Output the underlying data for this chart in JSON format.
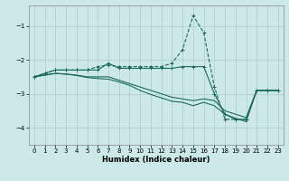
{
  "xlabel": "Humidex (Indice chaleur)",
  "ylabel": "",
  "background_color": "#cce8e8",
  "grid_color": "#aacccc",
  "line_color": "#1a6b5a",
  "xlim": [
    -0.5,
    23.5
  ],
  "ylim": [
    -4.5,
    -0.4
  ],
  "yticks": [
    -4,
    -3,
    -2,
    -1
  ],
  "xticks": [
    0,
    1,
    2,
    3,
    4,
    5,
    6,
    7,
    8,
    9,
    10,
    11,
    12,
    13,
    14,
    15,
    16,
    17,
    18,
    19,
    20,
    21,
    22,
    23
  ],
  "series": [
    {
      "x": [
        0,
        1,
        2,
        3,
        4,
        5,
        6,
        7,
        8,
        9,
        10,
        11,
        12,
        13,
        14,
        15,
        16,
        17,
        18,
        19,
        20,
        21,
        22,
        23
      ],
      "y": [
        -2.5,
        -2.4,
        -2.3,
        -2.3,
        -2.3,
        -2.3,
        -2.2,
        -2.15,
        -2.2,
        -2.2,
        -2.2,
        -2.2,
        -2.2,
        -2.1,
        -1.7,
        -0.7,
        -1.2,
        -2.8,
        -3.75,
        -3.75,
        -3.75,
        -2.9,
        -2.9,
        -2.9
      ],
      "style": "--",
      "marker": "+"
    },
    {
      "x": [
        0,
        1,
        2,
        3,
        4,
        5,
        6,
        7,
        8,
        9,
        10,
        11,
        12,
        13,
        14,
        15,
        16,
        17,
        18,
        19,
        20,
        21,
        22,
        23
      ],
      "y": [
        -2.5,
        -2.4,
        -2.3,
        -2.3,
        -2.3,
        -2.3,
        -2.3,
        -2.1,
        -2.25,
        -2.25,
        -2.25,
        -2.25,
        -2.25,
        -2.25,
        -2.2,
        -2.2,
        -2.2,
        -3.0,
        -3.6,
        -3.75,
        -3.75,
        -2.9,
        -2.9,
        -2.9
      ],
      "style": "-",
      "marker": "+"
    },
    {
      "x": [
        0,
        1,
        2,
        3,
        4,
        5,
        6,
        7,
        8,
        9,
        10,
        11,
        12,
        13,
        14,
        15,
        16,
        17,
        18,
        19,
        20,
        21,
        22,
        23
      ],
      "y": [
        -2.5,
        -2.45,
        -2.4,
        -2.42,
        -2.45,
        -2.5,
        -2.5,
        -2.5,
        -2.6,
        -2.7,
        -2.8,
        -2.9,
        -3.0,
        -3.1,
        -3.15,
        -3.2,
        -3.15,
        -3.2,
        -3.5,
        -3.6,
        -3.7,
        -2.9,
        -2.9,
        -2.9
      ],
      "style": "-",
      "marker": null
    },
    {
      "x": [
        0,
        1,
        2,
        3,
        4,
        5,
        6,
        7,
        8,
        9,
        10,
        11,
        12,
        13,
        14,
        15,
        16,
        17,
        18,
        19,
        20,
        21,
        22,
        23
      ],
      "y": [
        -2.5,
        -2.45,
        -2.4,
        -2.42,
        -2.46,
        -2.52,
        -2.55,
        -2.57,
        -2.65,
        -2.75,
        -2.9,
        -3.02,
        -3.12,
        -3.22,
        -3.25,
        -3.35,
        -3.25,
        -3.35,
        -3.6,
        -3.72,
        -3.82,
        -2.9,
        -2.9,
        -2.9
      ],
      "style": "-",
      "marker": null
    }
  ]
}
